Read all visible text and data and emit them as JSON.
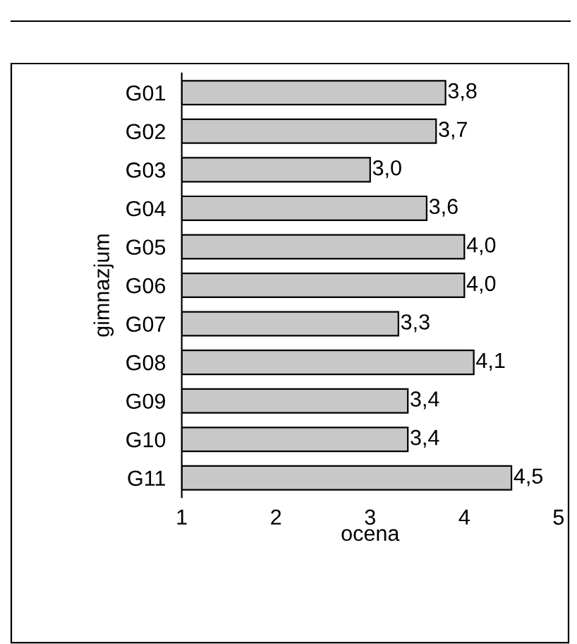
{
  "chart_data": {
    "type": "bar",
    "orientation": "horizontal",
    "xlabel": "ocena",
    "ylabel": "gimnazjum",
    "categories": [
      "G01",
      "G02",
      "G03",
      "G04",
      "G05",
      "G06",
      "G07",
      "G08",
      "G09",
      "G10",
      "G11"
    ],
    "values": [
      3.8,
      3.7,
      3.0,
      3.6,
      4.0,
      4.0,
      3.3,
      4.1,
      3.4,
      3.4,
      4.5
    ],
    "value_labels": [
      "3,8",
      "3,7",
      "3,0",
      "3,6",
      "4,0",
      "4,0",
      "3,3",
      "4,1",
      "3,4",
      "3,4",
      "4,5"
    ],
    "color": "#c8c8c8",
    "xlim": [
      1,
      5
    ],
    "xticks": [
      1,
      2,
      3,
      4,
      5
    ],
    "grid": false,
    "legend": false
  }
}
